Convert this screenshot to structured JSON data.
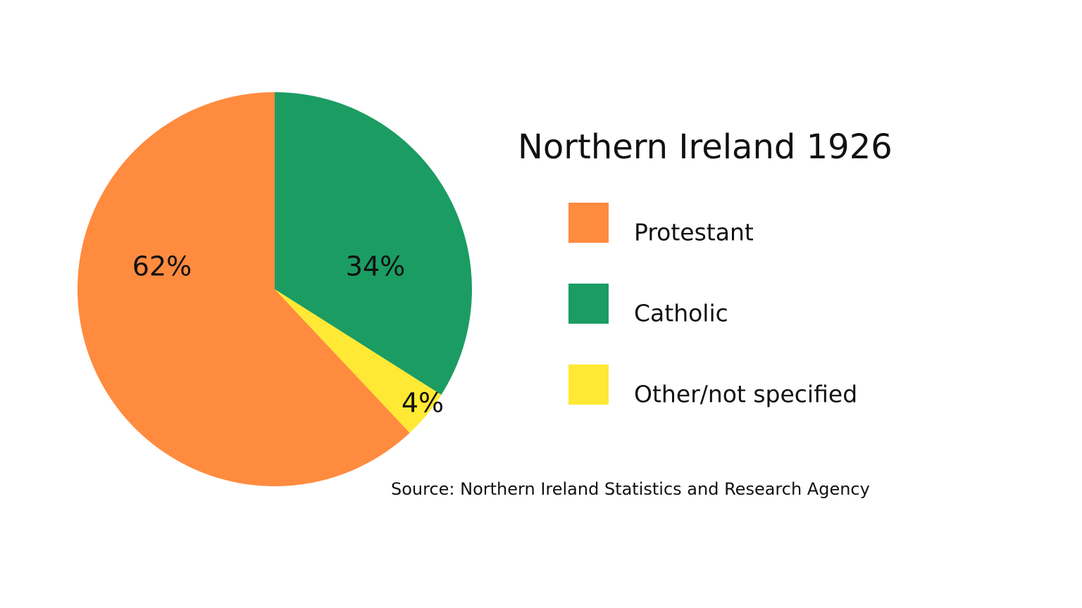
{
  "chart_data": {
    "type": "pie",
    "title": "Northern Ireland 1926",
    "categories": [
      "Protestant",
      "Catholic",
      "Other/not specified"
    ],
    "values": [
      62,
      34,
      4
    ],
    "value_labels": [
      "62%",
      "34%",
      "4%"
    ],
    "colors": [
      "#ff8b3f",
      "#1b9c63",
      "#ffe934"
    ],
    "source": "Source: Northern Ireland Statistics and Research Agency"
  }
}
